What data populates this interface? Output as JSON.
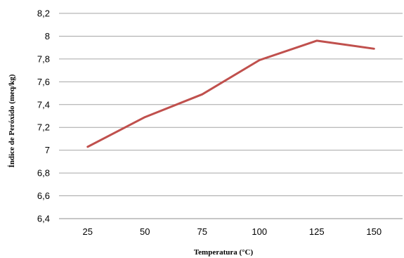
{
  "chart_data": {
    "type": "line",
    "categories": [
      "25",
      "50",
      "75",
      "100",
      "125",
      "150"
    ],
    "series": [
      {
        "values": [
          7.03,
          7.29,
          7.49,
          7.79,
          7.96,
          7.89
        ]
      }
    ],
    "xlabel": "Temperatura (°C)",
    "ylabel": "Índice de Peróxido (meq/kg)",
    "ylim": [
      6.4,
      8.2
    ],
    "yticks": [
      "6,4",
      "6,6",
      "6,8",
      "7",
      "7,2",
      "7,4",
      "7,6",
      "7,8",
      "8",
      "8,2"
    ],
    "grid": true,
    "legend": "none",
    "line_color": "#c0504d"
  }
}
